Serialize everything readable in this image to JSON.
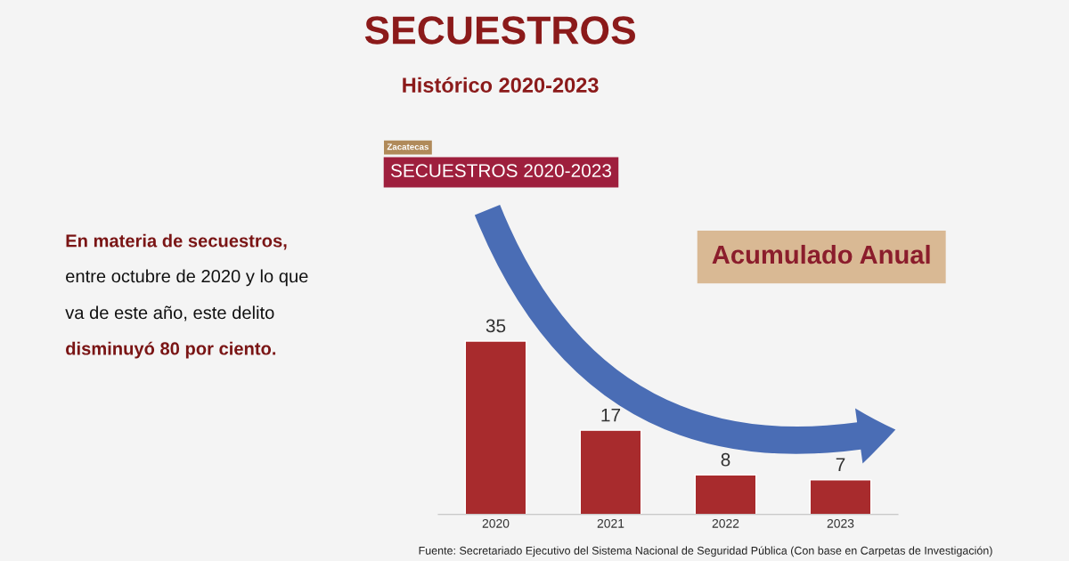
{
  "chart_data": {
    "type": "bar",
    "title": "SECUESTROS",
    "subtitle": "Histórico 2020-2023",
    "categories": [
      "2020",
      "2021",
      "2022",
      "2023"
    ],
    "values": [
      35,
      17,
      8,
      7
    ],
    "color": "#a82b2d",
    "data_labels": true,
    "grid": false,
    "legend": false,
    "annotations": [
      "Zacatecas",
      "SECUESTROS 2020-2023",
      "Acumulado Anual",
      "En materia de secuestros,",
      "entre octubre de 2020 y lo que",
      "va de este año, este delito",
      "disminuyó 80 por ciento.",
      "Fuente: Secretariado Ejecutivo del Sistema Nacional de Seguridad Pública (Con base en Carpetas de Investigación)"
    ]
  }
}
